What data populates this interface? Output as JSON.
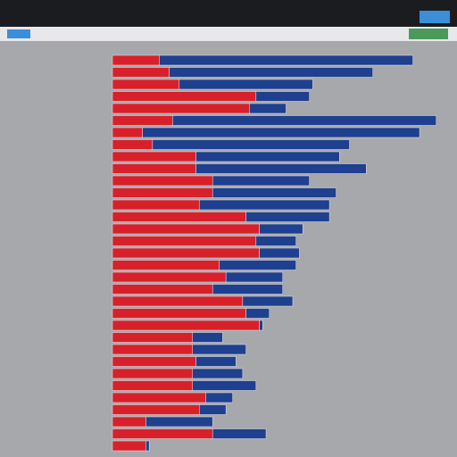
{
  "chart_data": {
    "type": "stacked-barh",
    "categories": [
      null,
      null,
      null,
      null,
      null,
      null,
      null,
      null,
      null,
      null,
      null,
      null,
      null,
      null,
      null,
      null,
      null,
      null,
      null,
      null,
      null,
      null,
      null,
      null,
      null,
      null,
      null,
      null,
      null,
      null,
      null,
      null,
      null
    ],
    "series": [
      {
        "color": "#d8202a",
        "values": [
          14,
          17,
          20,
          43,
          41,
          18,
          9,
          12,
          25,
          25,
          30,
          30,
          26,
          40,
          44,
          43,
          44,
          32,
          34,
          30,
          39,
          40,
          44,
          24,
          24,
          25,
          24,
          24,
          28,
          26,
          10,
          30,
          10
        ]
      },
      {
        "color": "#1f3f8f",
        "values": [
          76,
          61,
          40,
          16,
          11,
          79,
          83,
          59,
          43,
          51,
          29,
          37,
          39,
          25,
          13,
          12,
          12,
          23,
          17,
          21,
          15,
          7,
          1,
          9,
          16,
          12,
          15,
          19,
          8,
          8,
          20,
          16,
          1
        ]
      }
    ],
    "xlim": [
      0,
      100
    ]
  }
}
